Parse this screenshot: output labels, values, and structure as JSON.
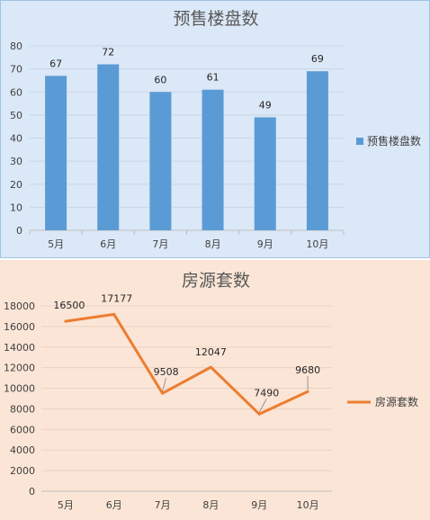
{
  "chart_data": [
    {
      "type": "bar",
      "title": "预售楼盘数",
      "categories": [
        "5月",
        "6月",
        "7月",
        "8月",
        "9月",
        "10月"
      ],
      "series": [
        {
          "name": "预售楼盘数",
          "values": [
            67,
            72,
            60,
            61,
            49,
            69
          ]
        }
      ],
      "ylim": [
        0,
        80
      ],
      "yticks": [
        0,
        10,
        20,
        30,
        40,
        50,
        60,
        70,
        80
      ],
      "grid": true,
      "legend": "right",
      "colors": {
        "bar": "#5b9bd5",
        "background": "#dbe8f7",
        "border": "#9dc3e6"
      }
    },
    {
      "type": "line",
      "title": "房源套数",
      "categories": [
        "5月",
        "6月",
        "7月",
        "8月",
        "9月",
        "10月"
      ],
      "series": [
        {
          "name": "房源套数",
          "values": [
            16500,
            17177,
            9508,
            12047,
            7490,
            9680
          ]
        }
      ],
      "ylim": [
        0,
        18000
      ],
      "yticks": [
        0,
        2000,
        4000,
        6000,
        8000,
        10000,
        12000,
        14000,
        16000,
        18000
      ],
      "grid": true,
      "legend": "right",
      "colors": {
        "line": "#ed7d31",
        "background": "#fbe5d6"
      }
    }
  ]
}
